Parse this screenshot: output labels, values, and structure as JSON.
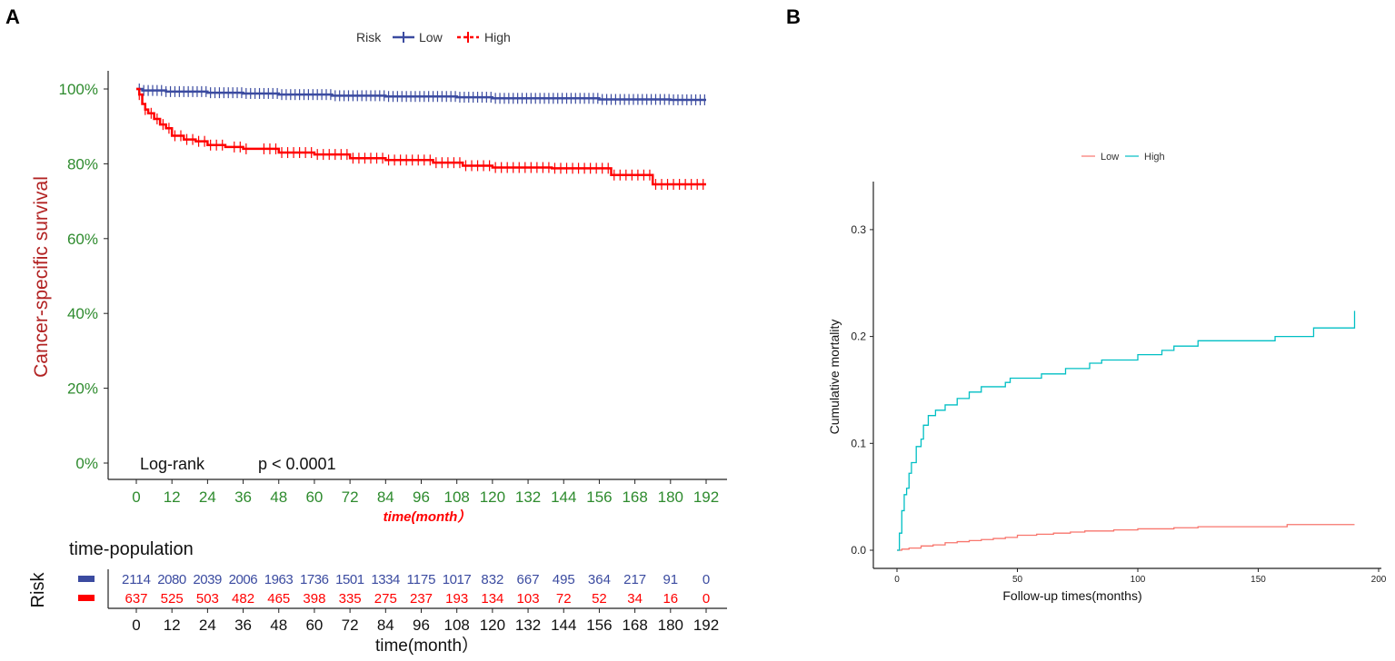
{
  "chart_data": [
    {
      "panel_label": "A",
      "type": "line",
      "subtype": "kaplan-meier",
      "legend": {
        "title": "Risk",
        "entries": [
          "Low",
          "High"
        ],
        "placement": "top"
      },
      "colors": {
        "Low": "#3b4ba0",
        "High": "#ff0000",
        "ytick": "#2e8b2e",
        "ylabel": "#b22222",
        "xlabel": "#ff0000"
      },
      "ylabel": "Cancer-specific survival",
      "xlabel": "time(month）",
      "yticks": [
        "0%",
        "20%",
        "40%",
        "60%",
        "80%",
        "100%"
      ],
      "ylim": [
        0,
        100
      ],
      "xticks": [
        "0",
        "12",
        "24",
        "36",
        "48",
        "60",
        "72",
        "84",
        "96",
        "108",
        "120",
        "132",
        "144",
        "156",
        "168",
        "180",
        "192"
      ],
      "xlim": [
        0,
        192
      ],
      "annotation": {
        "test": "Log-rank",
        "p": "p < 0.0001"
      },
      "series": [
        {
          "name": "Low",
          "x": [
            0,
            2,
            10,
            24,
            36,
            48,
            66,
            84,
            108,
            120,
            144,
            156,
            180,
            192
          ],
          "y": [
            100,
            99.6,
            99.3,
            99,
            98.8,
            98.5,
            98.2,
            98,
            97.8,
            97.5,
            97.5,
            97.2,
            97.1,
            97.1
          ]
        },
        {
          "name": "High",
          "x": [
            0,
            1,
            2,
            3,
            4,
            6,
            8,
            10,
            12,
            16,
            20,
            24,
            30,
            36,
            48,
            60,
            72,
            84,
            100,
            110,
            120,
            140,
            155,
            160,
            172,
            174,
            192
          ],
          "y": [
            100,
            98.5,
            96,
            94.5,
            93.5,
            92,
            90.5,
            89.5,
            87.5,
            86.5,
            86,
            85,
            84.5,
            84,
            83,
            82.5,
            81.5,
            81,
            80.3,
            79.5,
            79,
            78.8,
            78.8,
            77,
            77,
            74.5,
            74.5
          ]
        }
      ],
      "risk_table": {
        "title": "time-population",
        "row_label": "Risk",
        "xlabel": "time(month）",
        "rows": [
          {
            "name": "Low",
            "values": [
              "2114",
              "2080",
              "2039",
              "2006",
              "1963",
              "1736",
              "1501",
              "1334",
              "1175",
              "1017",
              "832",
              "667",
              "495",
              "364",
              "217",
              "91",
              "0"
            ]
          },
          {
            "name": "High",
            "values": [
              "637",
              "525",
              "503",
              "482",
              "465",
              "398",
              "335",
              "275",
              "237",
              "193",
              "134",
              "103",
              "72",
              "52",
              "34",
              "16",
              "0"
            ]
          }
        ]
      }
    },
    {
      "panel_label": "B",
      "type": "line",
      "subtype": "cumulative-incidence",
      "legend": {
        "entries": [
          "Low",
          "High"
        ],
        "placement": "top"
      },
      "colors": {
        "Low": "#f8766d",
        "High": "#00bfc4"
      },
      "ylabel": "Cumulative mortality",
      "xlabel": "Follow-up times(months)",
      "yticks": [
        "0.0",
        "0.1",
        "0.2",
        "0.3"
      ],
      "xticks": [
        "0",
        "50",
        "100",
        "150",
        "200"
      ],
      "xlim": [
        -10,
        200
      ],
      "ylim": [
        -0.017,
        0.335
      ],
      "series": [
        {
          "name": "Low",
          "x": [
            0,
            2,
            5,
            10,
            15,
            20,
            25,
            30,
            35,
            40,
            45,
            50,
            58,
            65,
            72,
            78,
            90,
            100,
            115,
            125,
            160,
            162,
            190
          ],
          "y": [
            0,
            0.001,
            0.002,
            0.004,
            0.005,
            0.007,
            0.008,
            0.009,
            0.01,
            0.011,
            0.012,
            0.014,
            0.015,
            0.016,
            0.017,
            0.018,
            0.019,
            0.02,
            0.021,
            0.022,
            0.022,
            0.024,
            0.024
          ]
        },
        {
          "name": "High",
          "x": [
            0,
            1,
            2,
            3,
            4,
            5,
            6,
            8,
            10,
            11,
            13,
            16,
            20,
            25,
            30,
            35,
            45,
            47,
            60,
            70,
            80,
            85,
            100,
            110,
            115,
            125,
            157,
            173,
            190
          ],
          "y": [
            0,
            0.016,
            0.037,
            0.052,
            0.058,
            0.072,
            0.082,
            0.097,
            0.104,
            0.117,
            0.126,
            0.131,
            0.136,
            0.142,
            0.148,
            0.153,
            0.157,
            0.161,
            0.165,
            0.17,
            0.175,
            0.178,
            0.183,
            0.187,
            0.191,
            0.196,
            0.2,
            0.208,
            0.224
          ]
        }
      ]
    }
  ]
}
